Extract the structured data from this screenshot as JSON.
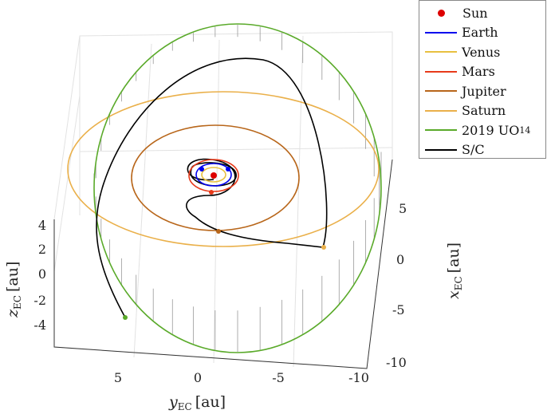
{
  "chart_data": {
    "type": "line",
    "projection": "3d",
    "xlabel": "x",
    "xlabel_sub": "EC",
    "xlabel_unit": "[au]",
    "ylabel": "y",
    "ylabel_sub": "EC",
    "ylabel_unit": "[au]",
    "zlabel": "z",
    "zlabel_sub": "EC",
    "zlabel_unit": "[au]",
    "x_ticks": [
      "5",
      "0",
      "-5",
      "-10"
    ],
    "y_ticks": [
      "5",
      "0",
      "-5",
      "-10"
    ],
    "z_ticks": [
      "4",
      "2",
      "0",
      "-2",
      "-4"
    ],
    "grid": true,
    "legend_placement": "outside-top-right",
    "series": [
      {
        "name": "Sun",
        "marker": "dot",
        "color": "#dd0000"
      },
      {
        "name": "Earth",
        "color": "#0000ee"
      },
      {
        "name": "Venus",
        "color": "#e8c040"
      },
      {
        "name": "Mars",
        "color": "#e83a1a"
      },
      {
        "name": "Jupiter",
        "color": "#b8661a"
      },
      {
        "name": "Saturn",
        "color": "#eab04a"
      },
      {
        "name": "2019 UO",
        "name_sub": "14",
        "color": "#5aaa2a"
      },
      {
        "name": "S/C",
        "color": "#000000"
      }
    ]
  }
}
